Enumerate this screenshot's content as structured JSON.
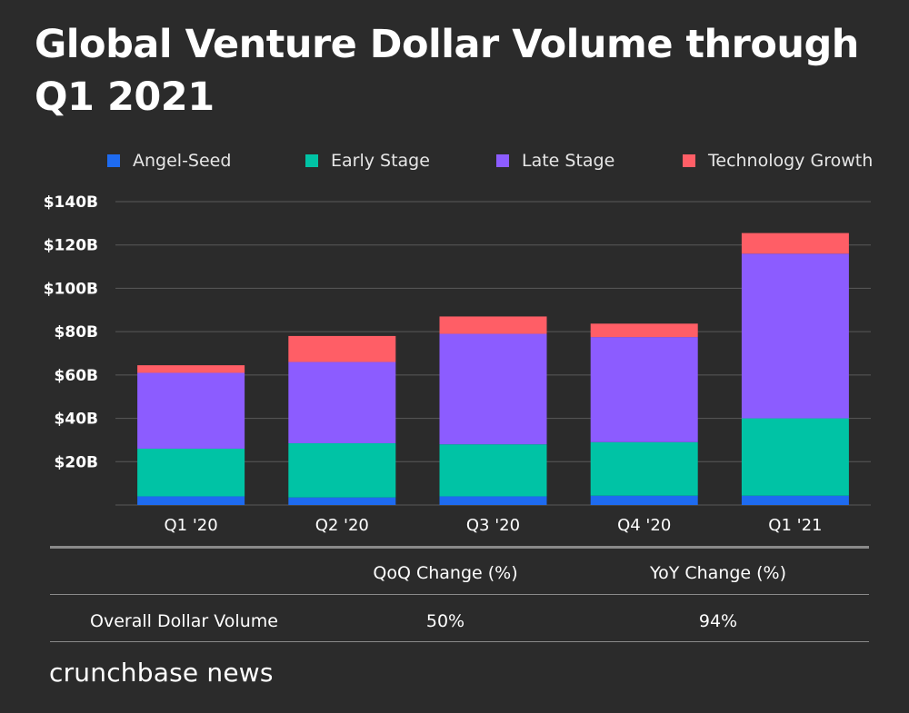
{
  "title": "Global Venture Dollar Volume through Q1 2021",
  "colors": {
    "background": "#2b2b2b",
    "angel_seed": "#1e6bf0",
    "early_stage": "#00c3a5",
    "late_stage": "#8c5cff",
    "technology_growth": "#ff5e66",
    "gridline": "#5a5a5a"
  },
  "chart_data": {
    "type": "bar",
    "stacked": true,
    "categories": [
      "Q1 '20",
      "Q2 '20",
      "Q3 '20",
      "Q4 '20",
      "Q1 '21"
    ],
    "series": [
      {
        "name": "Angel-Seed",
        "values": [
          4,
          3.5,
          4,
          4.3,
          4.3
        ]
      },
      {
        "name": "Early Stage",
        "values": [
          22,
          25,
          24,
          24.7,
          35.7
        ]
      },
      {
        "name": "Late Stage",
        "values": [
          35,
          37.5,
          51,
          48.5,
          76
        ]
      },
      {
        "name": "Technology Growth",
        "values": [
          3.5,
          12,
          8,
          6.2,
          9.5
        ]
      }
    ],
    "ylim": [
      0,
      140
    ],
    "yticks": [
      20,
      40,
      60,
      80,
      100,
      120,
      140
    ],
    "ytick_labels": [
      "$20B",
      "$40B",
      "$60B",
      "$80B",
      "$100B",
      "$120B",
      "$140B"
    ],
    "xlabel": "",
    "ylabel": "",
    "grid": true,
    "legend_position": "top"
  },
  "table": {
    "headers": [
      "",
      "QoQ Change (%)",
      "YoY Change (%)"
    ],
    "rows": [
      {
        "label": "Overall Dollar Volume",
        "qoq": "50%",
        "yoy": "94%"
      }
    ]
  },
  "brand": "crunchbase news"
}
